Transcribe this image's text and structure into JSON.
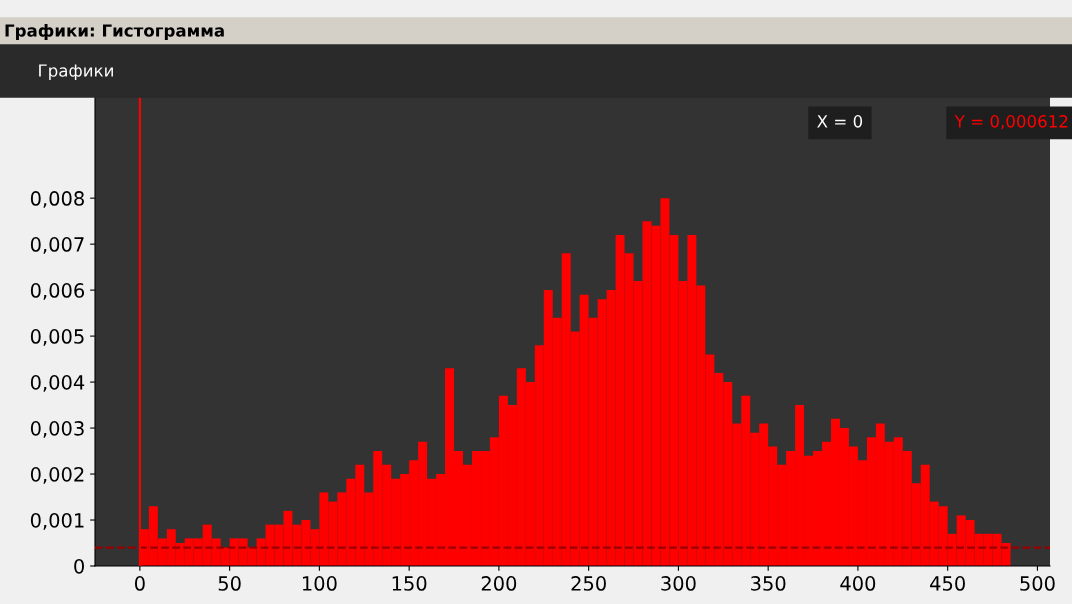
{
  "chart_data": {
    "type": "histogram",
    "title": "Графики: Гистограмма",
    "annotations": [
      "Графики",
      "X = 0",
      "Y = 0,000612"
    ],
    "bins": [
      0,
      5,
      10,
      15,
      20,
      25,
      30,
      35,
      40,
      45,
      50,
      55,
      60,
      65,
      70,
      75,
      80,
      85,
      90,
      95,
      100,
      105,
      110,
      115,
      120,
      125,
      130,
      135,
      140,
      145,
      150,
      155,
      160,
      165,
      170,
      175,
      180,
      185,
      190,
      195,
      200,
      205,
      210,
      215,
      220,
      225,
      230,
      235,
      240,
      245,
      250,
      255,
      260,
      265,
      270,
      275,
      280,
      285,
      290,
      295,
      300,
      305,
      310,
      315,
      320,
      325,
      330,
      335,
      340,
      345,
      350,
      355,
      360,
      365,
      370,
      375,
      380,
      385,
      390,
      395,
      400,
      405,
      410,
      415,
      420,
      425,
      430,
      435,
      440,
      445,
      450,
      455,
      460,
      465,
      470,
      475,
      480,
      485
    ],
    "values": [
      0.0008,
      0.0013,
      0.0006,
      0.0008,
      0.0005,
      0.0006,
      0.0006,
      0.0009,
      0.0006,
      0.0004,
      0.0006,
      0.0006,
      0.0004,
      0.0006,
      0.0009,
      0.0009,
      0.0012,
      0.0009,
      0.001,
      0.0008,
      0.0016,
      0.0014,
      0.0016,
      0.0019,
      0.0022,
      0.0016,
      0.0025,
      0.0022,
      0.0019,
      0.002,
      0.0023,
      0.0027,
      0.0019,
      0.002,
      0.0043,
      0.0025,
      0.0022,
      0.0025,
      0.0025,
      0.0028,
      0.0037,
      0.0035,
      0.0043,
      0.004,
      0.0048,
      0.006,
      0.0054,
      0.0068,
      0.0051,
      0.0059,
      0.0054,
      0.0058,
      0.006,
      0.0072,
      0.0068,
      0.0062,
      0.0075,
      0.0074,
      0.008,
      0.0072,
      0.0062,
      0.0072,
      0.0061,
      0.0046,
      0.0042,
      0.004,
      0.0031,
      0.0037,
      0.0029,
      0.0031,
      0.0026,
      0.0022,
      0.0025,
      0.0035,
      0.0024,
      0.0025,
      0.0027,
      0.0032,
      0.003,
      0.0026,
      0.0023,
      0.0028,
      0.0031,
      0.0027,
      0.0028,
      0.0025,
      0.0018,
      0.0022,
      0.0014,
      0.0013,
      0.0007,
      0.0011,
      0.001,
      0.0007,
      0.0007,
      0.0007,
      0.0005
    ],
    "color": "#ff0000",
    "xlim": [
      -25,
      507
    ],
    "xticks": [
      0,
      50,
      100,
      150,
      200,
      250,
      300,
      350,
      400,
      450,
      500
    ],
    "ylim": [
      0,
      0.0102
    ],
    "yticks": [
      0,
      {
        "value": 0.001,
        "label": "0,001"
      },
      {
        "value": 0.002,
        "label": "0,002"
      },
      {
        "value": 0.003,
        "label": "0,003"
      },
      {
        "value": 0.004,
        "label": "0,004"
      },
      {
        "value": 0.005,
        "label": "0,005"
      },
      {
        "value": 0.006,
        "label": "0,006"
      },
      {
        "value": 0.007,
        "label": "0,007"
      },
      {
        "value": 0.008,
        "label": "0,008"
      }
    ],
    "ref_lines": [
      {
        "axis": "y",
        "value": 0.0004,
        "color": "#990000",
        "line_style": "dashed"
      },
      {
        "axis": "x",
        "value": 0,
        "color": "#ff0000",
        "line_style": "solid"
      }
    ]
  }
}
